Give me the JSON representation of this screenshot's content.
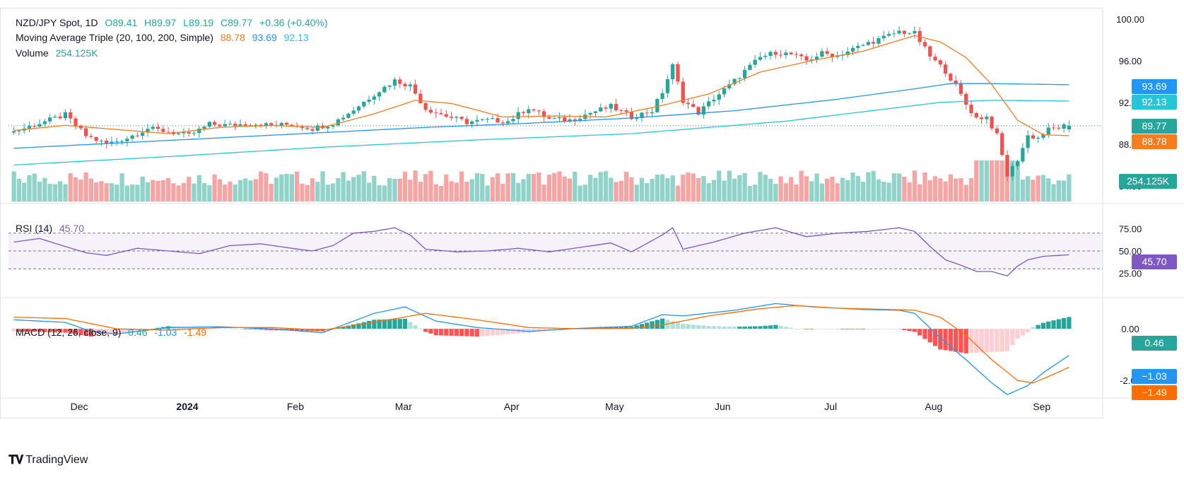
{
  "legend": {
    "symbol": "NZD/JPY Spot, 1D",
    "o_label": "O",
    "o": "89.41",
    "h_label": "H",
    "h": "89.97",
    "l_label": "L",
    "l": "89.19",
    "c_label": "C",
    "c": "89.77",
    "change": "+0.36 (+0.40%)",
    "ma_label": "Moving Average Triple (20, 100, 200, Simple)",
    "ma20": "88.78",
    "ma100": "93.69",
    "ma200": "92.13",
    "volume_label": "Volume",
    "volume": "254.125K",
    "rsi_label": "RSI (14)",
    "rsi": "45.70",
    "macd_label": "MACD (12, 26, close, 9)",
    "macd_hist": "0.46",
    "macd_line": "-1.03",
    "macd_signal": "-1.49"
  },
  "price_labels": {
    "last_price": "89.77",
    "ma20": "88.78",
    "ma100": "93.69",
    "ma200": "92.13",
    "volume": "254.125K",
    "rsi": "45.70",
    "macd_hist": "0.46",
    "macd_line": "−1.03",
    "macd_signal": "−1.49"
  },
  "colors": {
    "up": "#26a69a",
    "down": "#ef5350",
    "ma20": "#f57c1f",
    "ma100": "#2196f3",
    "ma200": "#26c6da",
    "rsi": "#7e57c2",
    "macd": "#2196f3",
    "signal": "#ff6d00",
    "vol_up": "#8fd3c9",
    "vol_down": "#f6a5a5"
  },
  "brand": "TradingView",
  "chart_data": {
    "type": "candlestick",
    "title": "NZD/JPY Spot, 1D",
    "x_ticks": [
      "Dec",
      "2024",
      "Feb",
      "Mar",
      "Apr",
      "May",
      "Jun",
      "Jul",
      "Aug",
      "Sep"
    ],
    "price_ticks": [
      "100.00",
      "96.00",
      "92.00",
      "88.00",
      "84.00"
    ],
    "price_range": [
      82.5,
      101.0
    ],
    "rsi_ticks": [
      "75.00",
      "50.00",
      "25.00"
    ],
    "rsi_range": [
      0,
      100
    ],
    "rsi_levels": [
      70,
      50,
      30
    ],
    "macd_ticks": [
      "0.00",
      "-2.00"
    ],
    "macd_range": [
      -2.6,
      1.1
    ],
    "close_anchors": [
      [
        0,
        89.2
      ],
      [
        5,
        90.0
      ],
      [
        10,
        90.8
      ],
      [
        14,
        88.8
      ],
      [
        18,
        88.0
      ],
      [
        22,
        88.6
      ],
      [
        26,
        89.5
      ],
      [
        30,
        89.2
      ],
      [
        34,
        88.8
      ],
      [
        38,
        89.9
      ],
      [
        42,
        89.8
      ],
      [
        46,
        90.0
      ],
      [
        50,
        89.8
      ],
      [
        54,
        89.9
      ],
      [
        58,
        89.5
      ],
      [
        62,
        90.0
      ],
      [
        66,
        91.3
      ],
      [
        70,
        92.8
      ],
      [
        74,
        94.1
      ],
      [
        77,
        93.6
      ],
      [
        80,
        91.4
      ],
      [
        84,
        90.7
      ],
      [
        88,
        90.1
      ],
      [
        92,
        90.3
      ],
      [
        96,
        90.2
      ],
      [
        100,
        91.5
      ],
      [
        104,
        90.4
      ],
      [
        108,
        90.3
      ],
      [
        112,
        91.0
      ],
      [
        116,
        91.6
      ],
      [
        120,
        90.6
      ],
      [
        124,
        91.2
      ],
      [
        126,
        93.0
      ],
      [
        128,
        95.5
      ],
      [
        130,
        92.2
      ],
      [
        133,
        91.0
      ],
      [
        136,
        92.4
      ],
      [
        139,
        93.6
      ],
      [
        142,
        95.0
      ],
      [
        145,
        96.3
      ],
      [
        148,
        96.8
      ],
      [
        151,
        96.6
      ],
      [
        154,
        96.0
      ],
      [
        157,
        96.7
      ],
      [
        160,
        96.5
      ],
      [
        163,
        97.1
      ],
      [
        166,
        97.7
      ],
      [
        169,
        98.2
      ],
      [
        172,
        98.8
      ],
      [
        175,
        98.6
      ],
      [
        178,
        96.4
      ],
      [
        181,
        95.0
      ],
      [
        183,
        93.6
      ],
      [
        185,
        91.8
      ],
      [
        187,
        90.5
      ],
      [
        189,
        90.6
      ],
      [
        191,
        88.8
      ],
      [
        193,
        85.0
      ],
      [
        195,
        86.5
      ],
      [
        197,
        88.8
      ],
      [
        199,
        88.6
      ],
      [
        201,
        89.4
      ],
      [
        203,
        89.6
      ],
      [
        205,
        89.8
      ]
    ],
    "ma20_anchors": [
      [
        0,
        89.3
      ],
      [
        10,
        89.8
      ],
      [
        20,
        89.4
      ],
      [
        30,
        89.0
      ],
      [
        40,
        89.6
      ],
      [
        50,
        89.8
      ],
      [
        60,
        89.6
      ],
      [
        70,
        90.9
      ],
      [
        78,
        92.2
      ],
      [
        85,
        91.9
      ],
      [
        95,
        90.6
      ],
      [
        105,
        90.7
      ],
      [
        115,
        90.6
      ],
      [
        125,
        91.6
      ],
      [
        135,
        92.8
      ],
      [
        145,
        94.9
      ],
      [
        155,
        96.0
      ],
      [
        165,
        96.9
      ],
      [
        175,
        98.4
      ],
      [
        180,
        97.8
      ],
      [
        185,
        96.3
      ],
      [
        190,
        93.7
      ],
      [
        195,
        90.3
      ],
      [
        200,
        88.9
      ],
      [
        205,
        88.8
      ]
    ],
    "ma100_anchors": [
      [
        0,
        87.6
      ],
      [
        20,
        88.1
      ],
      [
        40,
        88.6
      ],
      [
        60,
        89.1
      ],
      [
        80,
        89.6
      ],
      [
        100,
        90.0
      ],
      [
        120,
        90.5
      ],
      [
        140,
        91.2
      ],
      [
        160,
        92.3
      ],
      [
        175,
        93.3
      ],
      [
        182,
        93.8
      ],
      [
        190,
        93.8
      ],
      [
        205,
        93.69
      ]
    ],
    "ma200_anchors": [
      [
        0,
        86.0
      ],
      [
        30,
        86.8
      ],
      [
        60,
        87.7
      ],
      [
        90,
        88.4
      ],
      [
        120,
        89.0
      ],
      [
        150,
        90.2
      ],
      [
        170,
        91.4
      ],
      [
        180,
        92.0
      ],
      [
        190,
        92.2
      ],
      [
        205,
        92.13
      ]
    ],
    "rsi_anchors": [
      [
        0,
        60
      ],
      [
        5,
        64
      ],
      [
        10,
        55
      ],
      [
        14,
        48
      ],
      [
        18,
        45
      ],
      [
        24,
        53
      ],
      [
        30,
        50
      ],
      [
        36,
        47
      ],
      [
        42,
        56
      ],
      [
        48,
        58
      ],
      [
        54,
        53
      ],
      [
        58,
        50
      ],
      [
        62,
        56
      ],
      [
        66,
        70
      ],
      [
        70,
        72
      ],
      [
        74,
        76
      ],
      [
        77,
        68
      ],
      [
        80,
        52
      ],
      [
        86,
        49
      ],
      [
        92,
        50
      ],
      [
        98,
        53
      ],
      [
        104,
        49
      ],
      [
        110,
        54
      ],
      [
        116,
        59
      ],
      [
        120,
        49
      ],
      [
        126,
        68
      ],
      [
        128,
        76
      ],
      [
        130,
        52
      ],
      [
        136,
        60
      ],
      [
        142,
        70
      ],
      [
        148,
        76
      ],
      [
        154,
        66
      ],
      [
        160,
        70
      ],
      [
        166,
        72
      ],
      [
        172,
        76
      ],
      [
        175,
        72
      ],
      [
        178,
        55
      ],
      [
        181,
        40
      ],
      [
        184,
        34
      ],
      [
        187,
        27
      ],
      [
        190,
        27
      ],
      [
        193,
        22
      ],
      [
        195,
        33
      ],
      [
        197,
        40
      ],
      [
        200,
        44
      ],
      [
        203,
        45
      ],
      [
        205,
        45.7
      ]
    ],
    "macd_anchors": [
      [
        0,
        0.35
      ],
      [
        10,
        0.25
      ],
      [
        15,
        -0.1
      ],
      [
        20,
        -0.2
      ],
      [
        30,
        0.05
      ],
      [
        40,
        0.08
      ],
      [
        50,
        0.0
      ],
      [
        60,
        -0.15
      ],
      [
        70,
        0.6
      ],
      [
        76,
        0.85
      ],
      [
        82,
        0.3
      ],
      [
        90,
        0.05
      ],
      [
        100,
        -0.1
      ],
      [
        110,
        0.02
      ],
      [
        120,
        0.1
      ],
      [
        126,
        0.55
      ],
      [
        130,
        0.5
      ],
      [
        140,
        0.72
      ],
      [
        148,
        0.98
      ],
      [
        155,
        0.85
      ],
      [
        165,
        0.75
      ],
      [
        172,
        0.72
      ],
      [
        175,
        0.6
      ],
      [
        180,
        -0.35
      ],
      [
        185,
        -1.2
      ],
      [
        190,
        -2.1
      ],
      [
        193,
        -2.55
      ],
      [
        197,
        -2.2
      ],
      [
        200,
        -1.7
      ],
      [
        205,
        -1.03
      ]
    ],
    "signal_anchors": [
      [
        0,
        0.45
      ],
      [
        10,
        0.4
      ],
      [
        20,
        0.0
      ],
      [
        30,
        -0.05
      ],
      [
        40,
        0.05
      ],
      [
        50,
        0.05
      ],
      [
        60,
        -0.05
      ],
      [
        70,
        0.25
      ],
      [
        80,
        0.6
      ],
      [
        90,
        0.35
      ],
      [
        100,
        0.05
      ],
      [
        110,
        0.0
      ],
      [
        120,
        0.02
      ],
      [
        126,
        0.15
      ],
      [
        135,
        0.5
      ],
      [
        145,
        0.78
      ],
      [
        152,
        0.9
      ],
      [
        160,
        0.8
      ],
      [
        170,
        0.75
      ],
      [
        175,
        0.72
      ],
      [
        180,
        0.45
      ],
      [
        185,
        -0.25
      ],
      [
        190,
        -1.2
      ],
      [
        195,
        -2.0
      ],
      [
        198,
        -2.1
      ],
      [
        201,
        -1.85
      ],
      [
        205,
        -1.49
      ]
    ]
  }
}
